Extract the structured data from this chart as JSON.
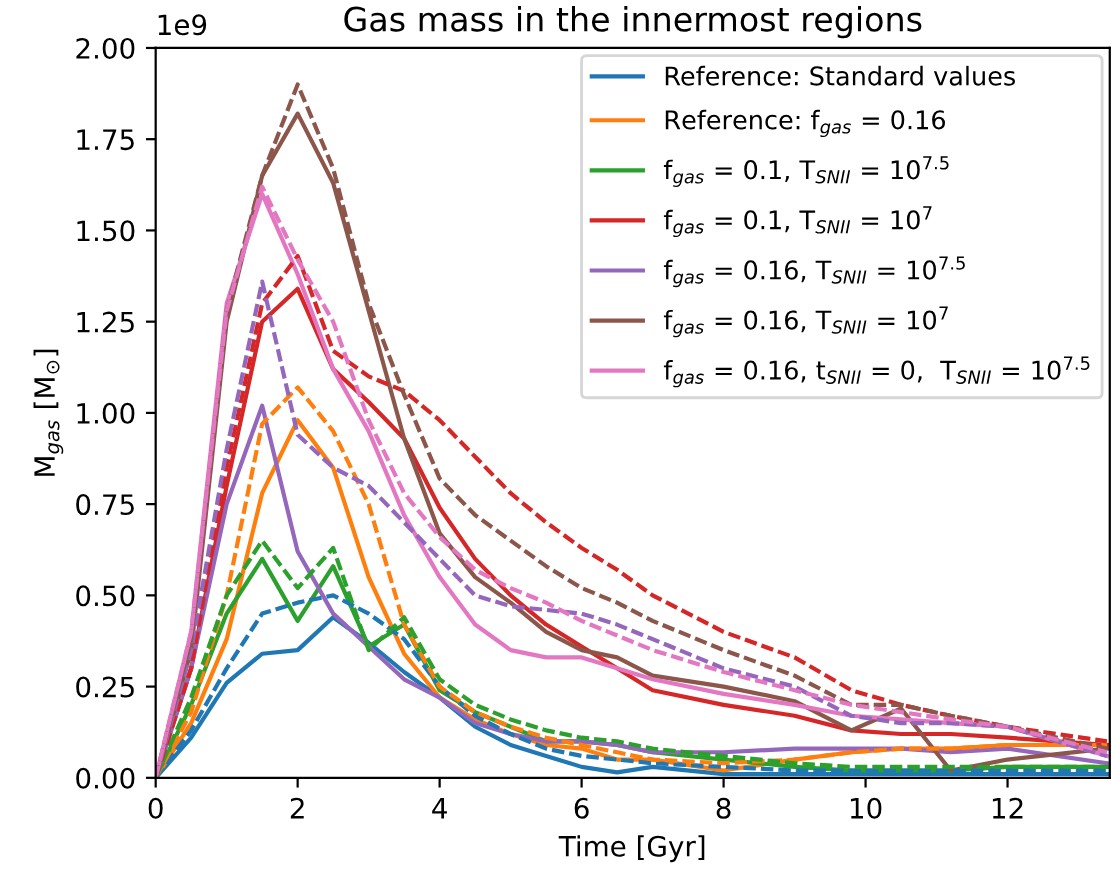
{
  "chart_data": {
    "type": "line",
    "title": "Gas mass in the innermost regions",
    "xlabel": "Time [Gyr]",
    "ylabel": "M$_{gas}$ [M$_{⊙}$]",
    "annotations": [
      "1e9"
    ],
    "x": [
      0,
      0.5,
      1,
      1.5,
      2,
      2.5,
      3,
      3.5,
      4,
      4.5,
      5,
      5.5,
      6,
      6.5,
      7,
      8,
      9,
      9.8,
      10.5,
      11.2,
      12,
      13.4
    ],
    "series": [
      {
        "name": "Reference: Standard values",
        "color": "#1f77b4",
        "line_style": "solid",
        "values": [
          0,
          0.11,
          0.26,
          0.34,
          0.35,
          0.44,
          0.37,
          0.29,
          0.22,
          0.14,
          0.09,
          0.06,
          0.03,
          0.015,
          0.03,
          0.01,
          0.01,
          0.01,
          0.01,
          0.01,
          0.01,
          0.01
        ]
      },
      {
        "name": "Reference: f$_{gas}$ = 0.16",
        "color": "#ff7f0e",
        "line_style": "solid",
        "values": [
          0,
          0.15,
          0.38,
          0.78,
          0.98,
          0.85,
          0.55,
          0.34,
          0.22,
          0.16,
          0.12,
          0.09,
          0.08,
          0.05,
          0.05,
          0.02,
          0.05,
          0.07,
          0.08,
          0.08,
          0.09,
          0.09
        ]
      },
      {
        "name": "f$_{gas}$ = 0.1, T$_{SNII}$ = 10$^{7.5}$",
        "color": "#2ca02c",
        "line_style": "solid",
        "values": [
          0,
          0.2,
          0.45,
          0.6,
          0.43,
          0.58,
          0.36,
          0.42,
          0.24,
          0.18,
          0.14,
          0.1,
          0.1,
          0.09,
          0.07,
          0.05,
          0.03,
          0.02,
          0.02,
          0.02,
          0.03,
          0.03
        ]
      },
      {
        "name": "f$_{gas}$ = 0.1, T$_{SNII}$ = 10$^{7}$",
        "color": "#d62728",
        "line_style": "solid",
        "values": [
          0,
          0.3,
          0.8,
          1.25,
          1.34,
          1.12,
          1.03,
          0.93,
          0.74,
          0.6,
          0.5,
          0.42,
          0.36,
          0.3,
          0.24,
          0.2,
          0.17,
          0.13,
          0.12,
          0.12,
          0.11,
          0.09
        ]
      },
      {
        "name": "f$_{gas}$ = 0.16, T$_{SNII}$ = 10$^{7.5}$",
        "color": "#9467bd",
        "line_style": "solid",
        "values": [
          0,
          0.3,
          0.75,
          1.02,
          0.62,
          0.45,
          0.36,
          0.27,
          0.22,
          0.15,
          0.12,
          0.1,
          0.1,
          0.09,
          0.07,
          0.07,
          0.08,
          0.08,
          0.08,
          0.07,
          0.08,
          0.04
        ]
      },
      {
        "name": "f$_{gas}$ = 0.16, T$_{SNII}$ = 10$^{7}$",
        "color": "#8c564b",
        "line_style": "solid",
        "values": [
          0,
          0.35,
          1.25,
          1.65,
          1.82,
          1.63,
          1.28,
          0.93,
          0.67,
          0.55,
          0.48,
          0.4,
          0.35,
          0.33,
          0.28,
          0.25,
          0.21,
          0.13,
          0.19,
          0.02,
          0.05,
          0.08
        ]
      },
      {
        "name": "f$_{gas}$ = 0.16, t$_{SNII}$ = 0,  T$_{SNII}$ = 10$^{7.5}$",
        "color": "#e377c2",
        "line_style": "solid",
        "values": [
          0,
          0.4,
          1.3,
          1.6,
          1.38,
          1.12,
          0.95,
          0.72,
          0.55,
          0.42,
          0.35,
          0.33,
          0.33,
          0.3,
          0.27,
          0.23,
          0.2,
          0.17,
          0.16,
          0.15,
          0.14,
          0.06
        ]
      },
      {
        "color": "#1f77b4",
        "line_style": "dashed",
        "values": [
          0,
          0.13,
          0.3,
          0.45,
          0.48,
          0.5,
          0.45,
          0.38,
          0.25,
          0.17,
          0.12,
          0.08,
          0.06,
          0.05,
          0.04,
          0.03,
          0.02,
          0.02,
          0.02,
          0.02,
          0.02,
          0.02
        ]
      },
      {
        "color": "#ff7f0e",
        "line_style": "dashed",
        "values": [
          0,
          0.18,
          0.5,
          0.97,
          1.07,
          0.95,
          0.75,
          0.42,
          0.25,
          0.18,
          0.14,
          0.11,
          0.09,
          0.07,
          0.05,
          0.04,
          0.05,
          0.07,
          0.08,
          0.08,
          0.09,
          0.09
        ]
      },
      {
        "color": "#2ca02c",
        "line_style": "dashed",
        "values": [
          0,
          0.22,
          0.5,
          0.65,
          0.52,
          0.63,
          0.35,
          0.44,
          0.27,
          0.2,
          0.16,
          0.13,
          0.11,
          0.1,
          0.08,
          0.06,
          0.04,
          0.03,
          0.03,
          0.03,
          0.03,
          0.03
        ]
      },
      {
        "color": "#d62728",
        "line_style": "dashed",
        "values": [
          0,
          0.3,
          0.85,
          1.3,
          1.43,
          1.17,
          1.1,
          1.06,
          0.98,
          0.88,
          0.78,
          0.7,
          0.63,
          0.57,
          0.5,
          0.4,
          0.33,
          0.24,
          0.2,
          0.17,
          0.14,
          0.1
        ]
      },
      {
        "color": "#9467bd",
        "line_style": "dashed",
        "values": [
          0,
          0.35,
          0.9,
          1.36,
          0.94,
          0.85,
          0.8,
          0.7,
          0.6,
          0.5,
          0.47,
          0.46,
          0.45,
          0.42,
          0.38,
          0.3,
          0.25,
          0.17,
          0.15,
          0.15,
          0.14,
          0.06
        ]
      },
      {
        "color": "#8c564b",
        "line_style": "dashed",
        "values": [
          0,
          0.38,
          1.28,
          1.65,
          1.9,
          1.67,
          1.3,
          1.05,
          0.82,
          0.72,
          0.65,
          0.58,
          0.52,
          0.48,
          0.43,
          0.35,
          0.28,
          0.2,
          0.2,
          0.17,
          0.14,
          0.08
        ]
      },
      {
        "color": "#e377c2",
        "line_style": "dashed",
        "values": [
          0,
          0.4,
          1.28,
          1.62,
          1.42,
          1.25,
          0.98,
          0.78,
          0.66,
          0.57,
          0.52,
          0.48,
          0.43,
          0.39,
          0.35,
          0.29,
          0.24,
          0.2,
          0.18,
          0.16,
          0.14,
          0.07
        ]
      }
    ],
    "xlim": [
      0,
      13.44
    ],
    "ylim": [
      0,
      2.0
    ],
    "xticks": [
      0,
      2,
      4,
      6,
      8,
      10,
      12
    ],
    "yticks": [
      {
        "value": 0,
        "label": "0.00"
      },
      {
        "value": 0.25,
        "label": "0.25"
      },
      {
        "value": 0.5,
        "label": "0.50"
      },
      {
        "value": 0.75,
        "label": "0.75"
      },
      {
        "value": 1.0,
        "label": "1.00"
      },
      {
        "value": 1.25,
        "label": "1.25"
      },
      {
        "value": 1.5,
        "label": "1.50"
      },
      {
        "value": 1.75,
        "label": "1.75"
      },
      {
        "value": 2.0,
        "label": "2.00"
      }
    ],
    "legend": "top right",
    "grid": false
  }
}
